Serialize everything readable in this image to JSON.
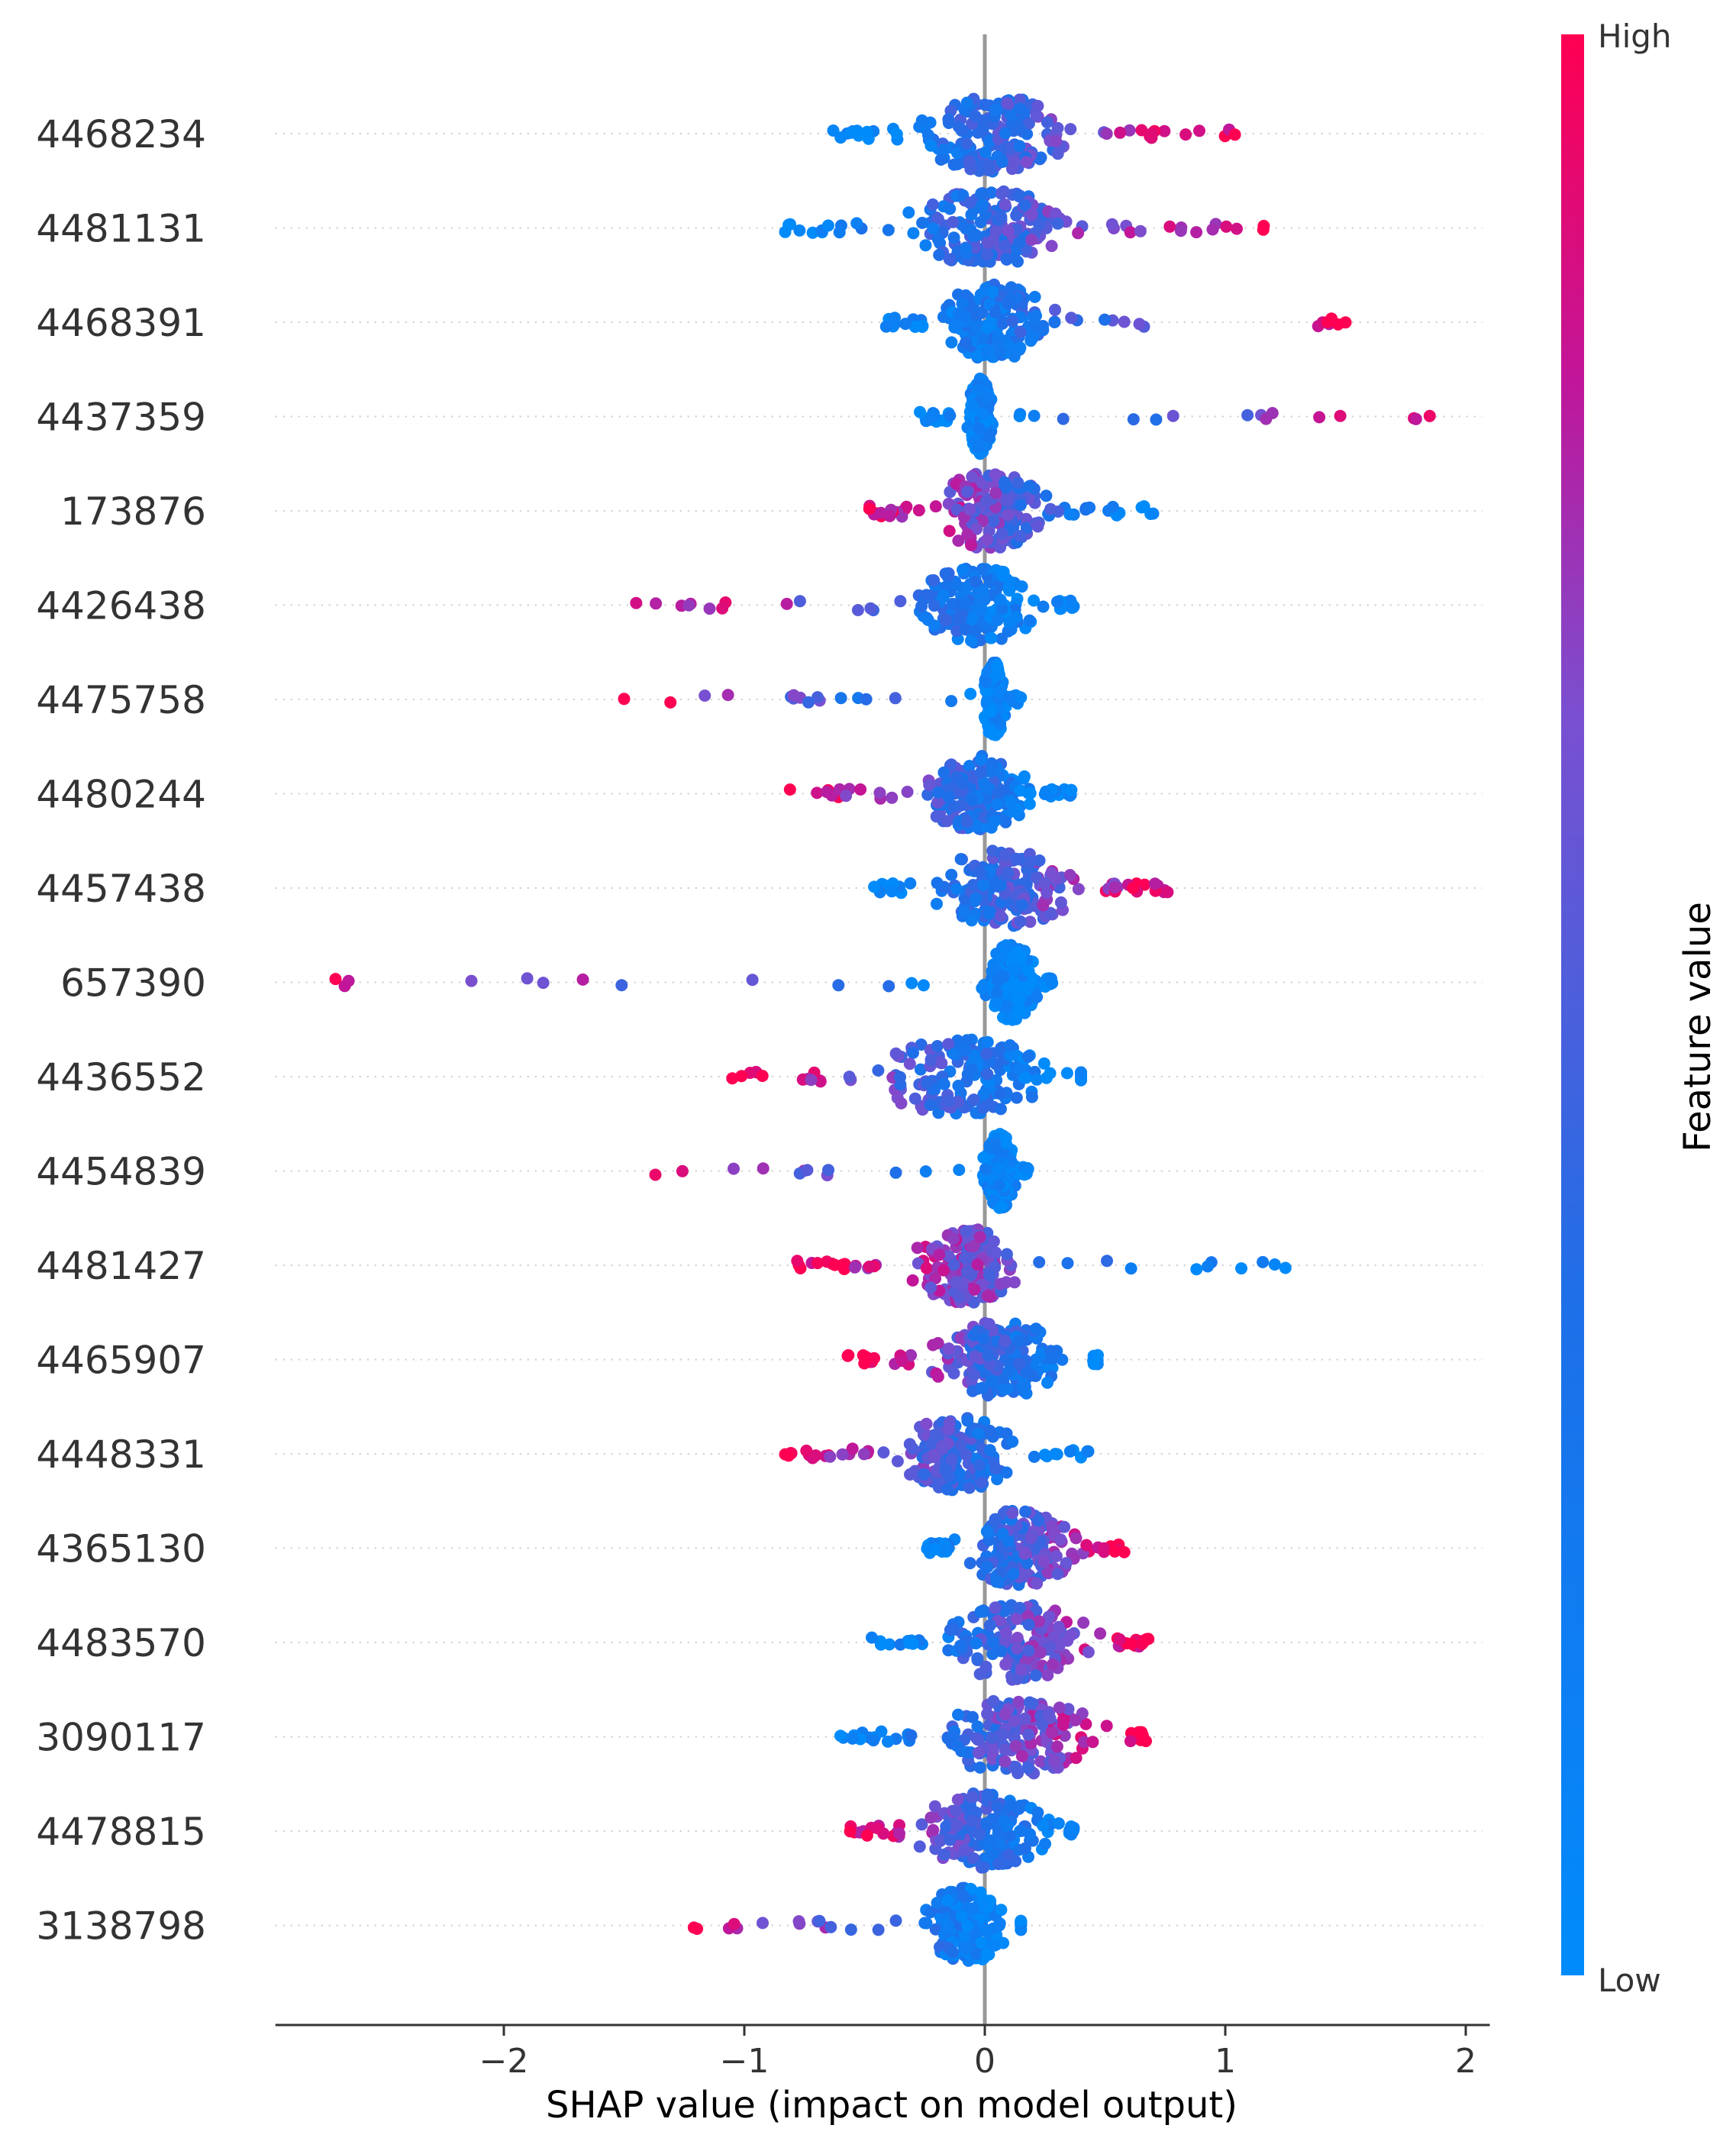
{
  "chart_data": {
    "type": "scatter",
    "subtype": "shap-beeswarm",
    "xlabel": "SHAP value (impact on model output)",
    "xlim": [
      -2.95,
      2.1
    ],
    "xticks": [
      -2,
      -1,
      0,
      1,
      2
    ],
    "xtick_labels": [
      "−2",
      "−1",
      "0",
      "1",
      "2"
    ],
    "colorbar": {
      "label": "Feature value",
      "high_label": "High",
      "low_label": "Low",
      "low_color": "#008bfb",
      "high_color": "#ff0052"
    },
    "features": [
      {
        "name": "4468234",
        "min": -0.63,
        "max": 1.04,
        "core": [
          -0.35,
          0.45
        ],
        "corr": 1
      },
      {
        "name": "4481131",
        "min": -0.83,
        "max": 1.16,
        "core": [
          -0.4,
          0.45
        ],
        "corr": 1
      },
      {
        "name": "4468391",
        "min": -0.41,
        "max": 1.5,
        "core": [
          -0.25,
          0.35
        ],
        "corr": 1
      },
      {
        "name": "4437359",
        "min": -0.27,
        "max": 1.85,
        "core": [
          -0.08,
          0.05
        ],
        "corr": 1
      },
      {
        "name": "173876",
        "min": -0.48,
        "max": 0.7,
        "core": [
          -0.3,
          0.35
        ],
        "corr": -1
      },
      {
        "name": "4426438",
        "min": -1.45,
        "max": 0.37,
        "core": [
          -0.35,
          0.3
        ],
        "corr": -1
      },
      {
        "name": "4475758",
        "min": -1.5,
        "max": 0.15,
        "core": [
          -0.02,
          0.1
        ],
        "corr": -1
      },
      {
        "name": "4480244",
        "min": -0.81,
        "max": 0.36,
        "core": [
          -0.3,
          0.25
        ],
        "corr": -1
      },
      {
        "name": "4457438",
        "min": -0.46,
        "max": 0.76,
        "core": [
          -0.3,
          0.5
        ],
        "corr": 1
      },
      {
        "name": "657390",
        "min": -2.7,
        "max": 0.28,
        "core": [
          -0.02,
          0.25
        ],
        "corr": -1
      },
      {
        "name": "4436552",
        "min": -1.05,
        "max": 0.4,
        "core": [
          -0.55,
          0.4
        ],
        "corr": -1
      },
      {
        "name": "4454839",
        "min": -1.37,
        "max": 0.18,
        "core": [
          -0.02,
          0.15
        ],
        "corr": -1
      },
      {
        "name": "4481427",
        "min": -0.78,
        "max": 1.25,
        "core": [
          -0.35,
          0.2
        ],
        "corr": -1
      },
      {
        "name": "4465907",
        "min": -0.57,
        "max": 0.47,
        "core": [
          -0.3,
          0.45
        ],
        "corr": -1
      },
      {
        "name": "4448331",
        "min": -0.83,
        "max": 0.43,
        "core": [
          -0.4,
          0.2
        ],
        "corr": -1
      },
      {
        "name": "4365130",
        "min": -0.24,
        "max": 0.58,
        "core": [
          -0.15,
          0.45
        ],
        "corr": 1
      },
      {
        "name": "4483570",
        "min": -0.47,
        "max": 0.68,
        "core": [
          -0.25,
          0.55
        ],
        "corr": 1
      },
      {
        "name": "3090117",
        "min": -0.6,
        "max": 0.67,
        "core": [
          -0.3,
          0.6
        ],
        "corr": 1
      },
      {
        "name": "4478815",
        "min": -0.56,
        "max": 0.37,
        "core": [
          -0.35,
          0.35
        ],
        "corr": -1
      },
      {
        "name": "3138798",
        "min": -1.21,
        "max": 0.15,
        "core": [
          -0.3,
          0.15
        ],
        "corr": -1
      }
    ]
  }
}
